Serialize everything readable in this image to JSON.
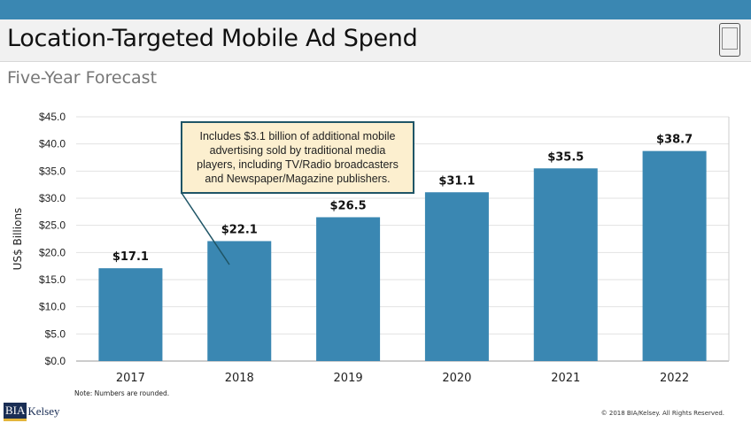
{
  "header": {
    "title": "Location-Targeted Mobile Ad Spend",
    "subtitle": "Five-Year Forecast",
    "icon": "mobile-phone-icon"
  },
  "chart_data": {
    "type": "bar",
    "title": "Location-Targeted Mobile Ad Spend",
    "subtitle": "Five-Year Forecast",
    "categories": [
      "2017",
      "2018",
      "2019",
      "2020",
      "2021",
      "2022"
    ],
    "values": [
      17.1,
      22.1,
      26.5,
      31.1,
      35.5,
      38.7
    ],
    "data_labels": [
      "$17.1",
      "$22.1",
      "$26.5",
      "$31.1",
      "$35.5",
      "$38.7"
    ],
    "ylabel": "US$ Billions",
    "xlabel": "",
    "ylim": [
      0,
      45
    ],
    "yticks": [
      "$0.0",
      "$5.0",
      "$10.0",
      "$15.0",
      "$20.0",
      "$25.0",
      "$30.0",
      "$35.0",
      "$40.0",
      "$45.0"
    ],
    "grid": true,
    "bar_color": "#3a87b2",
    "annotation": {
      "text": "Includes $3.1 billion of additional mobile advertising sold by traditional media players, including TV/Radio broadcasters and Newspaper/Magazine publishers.",
      "target": "2018"
    }
  },
  "footer": {
    "note": "Note: Numbers are rounded.",
    "copyright": "© 2018 BIA/Kelsey. All Rights Reserved.",
    "logo_bia": "BIA",
    "logo_kelsey": "Kelsey"
  }
}
